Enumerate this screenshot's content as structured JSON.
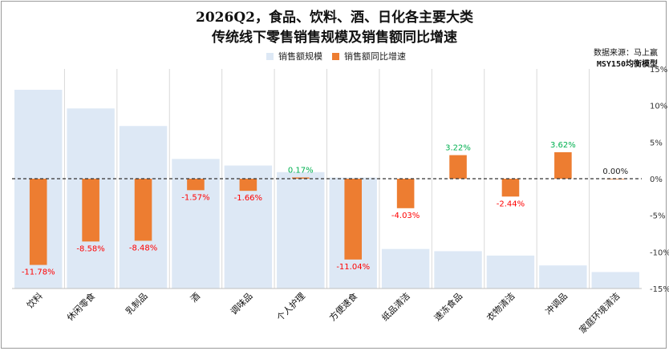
{
  "chart_data": {
    "type": "bar",
    "title": [
      "2026Q2，食品、饮料、酒、日化各主要大类",
      "传统线下零售销售规模及销售额同比增速"
    ],
    "source": [
      "数据来源：马上赢",
      "MSY150均衡模型"
    ],
    "categories": [
      "饮料",
      "休闲零食",
      "乳制品",
      "酒",
      "调味品",
      "个人护理",
      "方便速食",
      "纸品清洁",
      "速冻食品",
      "衣物清洁",
      "冲调品",
      "家庭环境清洁"
    ],
    "series": [
      {
        "name": "销售额规模",
        "color": "#dde8f5",
        "axis": "left-unlabeled",
        "relative_values": [
          0.905,
          0.82,
          0.74,
          0.59,
          0.56,
          0.53,
          0.505,
          0.18,
          0.17,
          0.15,
          0.105,
          0.075
        ]
      },
      {
        "name": "销售额同比增速",
        "color": "#ed7d31",
        "axis": "right",
        "unit": "%",
        "values": [
          -11.78,
          -8.58,
          -8.48,
          -1.57,
          -1.66,
          0.17,
          -11.04,
          -4.03,
          3.22,
          -2.44,
          3.62,
          0.0
        ],
        "labels": [
          "-11.78%",
          "-8.58%",
          "-8.48%",
          "-1.57%",
          "-1.66%",
          "0.17%",
          "-11.04%",
          "-4.03%",
          "3.22%",
          "-2.44%",
          "3.62%",
          "0.00%"
        ]
      }
    ],
    "y_right": {
      "ylim": [
        -15,
        15
      ],
      "ticks": [
        15,
        10,
        5,
        0,
        -5,
        -10,
        -15
      ],
      "tick_labels": [
        "15%",
        "10%",
        "5%",
        "0%",
        "-5%",
        "-10%",
        "-15%"
      ]
    },
    "label_colors": {
      "negative": "#ff0000",
      "positive": "#00b050",
      "zero": "#222222"
    },
    "zero_line": "dashed",
    "grid": "vertical-category-lines",
    "legend_position": "top-center"
  }
}
